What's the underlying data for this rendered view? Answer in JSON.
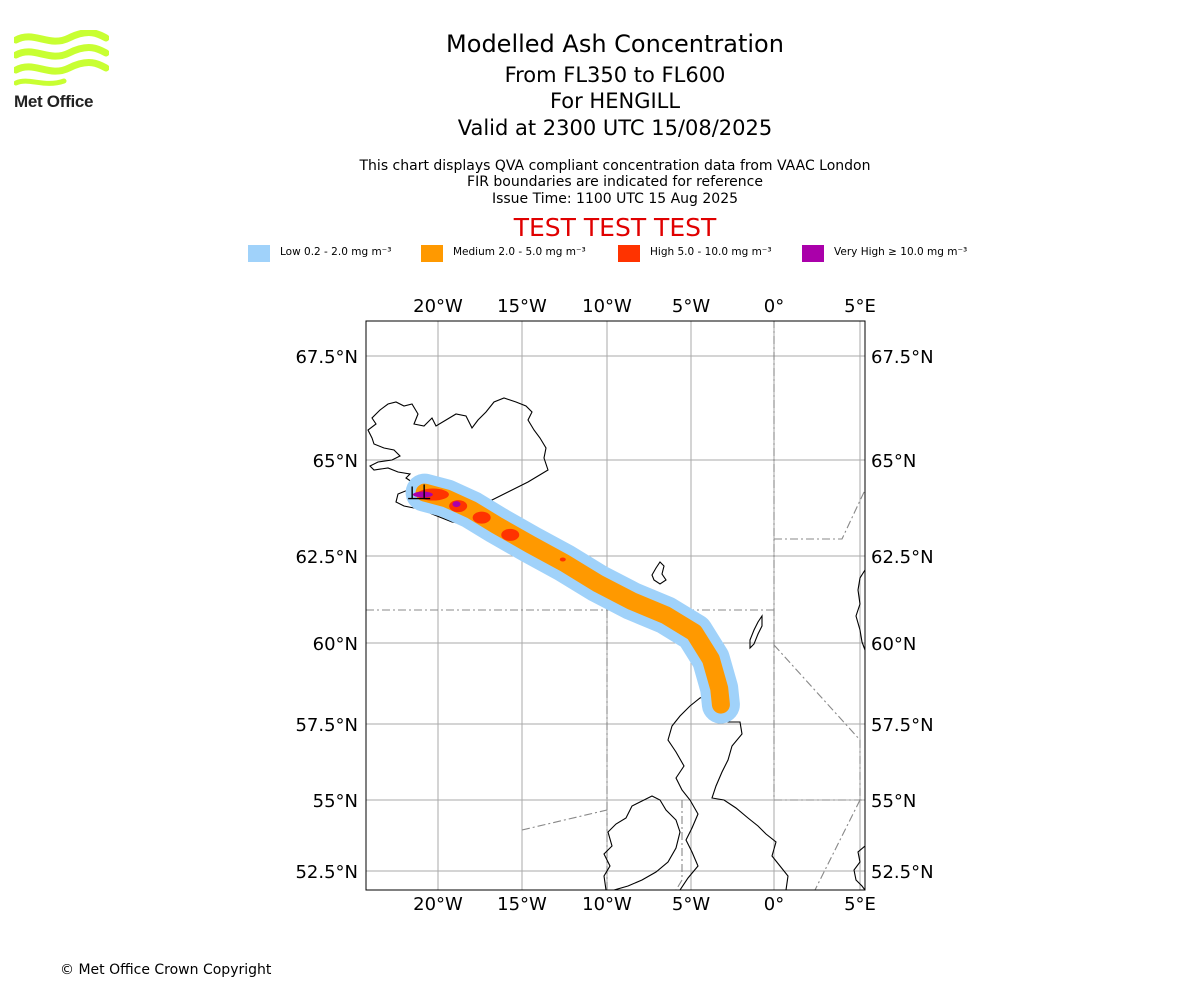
{
  "header": {
    "title": "Modelled Ash Concentration",
    "flight_levels": "From FL350 to FL600",
    "volcano": "For HENGILL",
    "valid_time": "Valid at 2300 UTC 15/08/2025",
    "note_1": "This chart displays QVA compliant concentration data from VAAC London",
    "note_2": "FIR boundaries are indicated for reference",
    "issue_time": "Issue Time: 1100 UTC 15 Aug 2025",
    "test_banner": "TEST TEST TEST"
  },
  "logo": {
    "text": "Met Office",
    "color": "#c8ff32"
  },
  "legend": [
    {
      "label": "Low 0.2 - 2.0 mg m⁻³",
      "color": "#a0d2fa"
    },
    {
      "label": "Medium 2.0 - 5.0 mg m⁻³",
      "color": "#ff9900"
    },
    {
      "label": "High 5.0 - 10.0 mg m⁻³",
      "color": "#ff3300"
    },
    {
      "label": "Very High ≥ 10.0 mg m⁻³",
      "color": "#aa00aa"
    }
  ],
  "map": {
    "projection": "polar-stereographic",
    "extent": {
      "lon_min": -24.4,
      "lon_max": 5.3,
      "lat_min": 52.0,
      "lat_max": 68.0
    },
    "lon_ticks": [
      {
        "value": -20,
        "label": "20°W"
      },
      {
        "value": -15,
        "label": "15°W"
      },
      {
        "value": -10,
        "label": "10°W"
      },
      {
        "value": -5,
        "label": "5°W"
      },
      {
        "value": 0,
        "label": "0°"
      },
      {
        "value": 5,
        "label": "5°E"
      }
    ],
    "lat_ticks": [
      {
        "value": 67.5,
        "label": "67.5°N"
      },
      {
        "value": 65,
        "label": "65°N"
      },
      {
        "value": 62.5,
        "label": "62.5°N"
      },
      {
        "value": 60,
        "label": "60°N"
      },
      {
        "value": 57.5,
        "label": "57.5°N"
      },
      {
        "value": 55,
        "label": "55°N"
      },
      {
        "value": 52.5,
        "label": "52.5°N"
      }
    ],
    "gridlines": true,
    "source_volcano": {
      "name": "HENGILL",
      "lat": 64.1,
      "lon": -21.3
    },
    "ash_plume_track": [
      {
        "lat": 64.15,
        "lon": -20.8
      },
      {
        "lat": 64.0,
        "lon": -19.5
      },
      {
        "lat": 63.7,
        "lon": -18.0
      },
      {
        "lat": 63.3,
        "lon": -16.5
      },
      {
        "lat": 62.8,
        "lon": -14.5
      },
      {
        "lat": 62.3,
        "lon": -12.5
      },
      {
        "lat": 61.7,
        "lon": -10.5
      },
      {
        "lat": 61.2,
        "lon": -8.5
      },
      {
        "lat": 60.8,
        "lon": -6.5
      },
      {
        "lat": 60.3,
        "lon": -4.8
      },
      {
        "lat": 59.5,
        "lon": -3.8
      },
      {
        "lat": 58.6,
        "lon": -3.3
      },
      {
        "lat": 58.1,
        "lon": -3.2
      }
    ],
    "high_patches": [
      {
        "lat": 64.1,
        "lon": -20.3
      },
      {
        "lat": 63.8,
        "lon": -18.8
      },
      {
        "lat": 63.5,
        "lon": -17.4
      },
      {
        "lat": 63.05,
        "lon": -15.7
      },
      {
        "lat": 62.4,
        "lon": -12.6
      }
    ],
    "very_high_patches": [
      {
        "lat": 64.1,
        "lon": -20.9
      },
      {
        "lat": 63.85,
        "lon": -18.9
      }
    ]
  },
  "footer": {
    "copyright": "© Met Office Crown Copyright"
  }
}
